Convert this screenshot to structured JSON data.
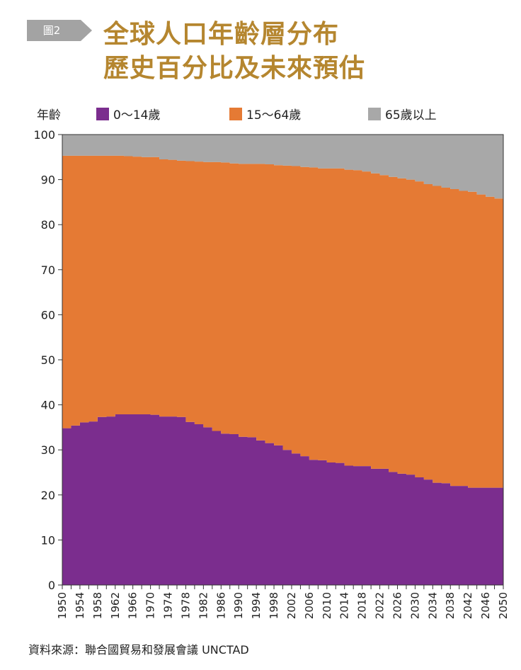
{
  "badge": "圖2",
  "title": [
    "全球人口年齡層分布",
    "歷史百分比及未來預估"
  ],
  "legend_label": "年齡",
  "source": "資料來源：聯合國貿易和發展會議 UNCTAD",
  "colors": {
    "g0_14": "#7b2d8e",
    "g15_64": "#e57a34",
    "g65": "#a8a8a8",
    "title": "#b5862f",
    "badge": "#a3a3a3"
  },
  "chart_data": {
    "type": "area",
    "stacked": true,
    "title": "全球人口年齡層分布 歷史百分比及未來預估",
    "xlabel": "",
    "ylabel": "年齡",
    "ylim": [
      0,
      100
    ],
    "yticks": [
      0,
      10,
      20,
      30,
      40,
      50,
      60,
      70,
      80,
      90,
      100
    ],
    "x": [
      1950,
      1952,
      1954,
      1956,
      1958,
      1960,
      1962,
      1964,
      1966,
      1968,
      1970,
      1972,
      1974,
      1976,
      1978,
      1980,
      1982,
      1984,
      1986,
      1988,
      1990,
      1992,
      1994,
      1996,
      1998,
      2000,
      2002,
      2004,
      2006,
      2008,
      2010,
      2012,
      2014,
      2016,
      2018,
      2020,
      2022,
      2024,
      2026,
      2028,
      2030,
      2032,
      2034,
      2036,
      2038,
      2040,
      2042,
      2044,
      2046,
      2048,
      2050
    ],
    "xtick_labels": [
      "1950",
      "1954",
      "1958",
      "1962",
      "1966",
      "1970",
      "1974",
      "1978",
      "1982",
      "1986",
      "1990",
      "1994",
      "1998",
      "2002",
      "2006",
      "2010",
      "2014",
      "2018",
      "2022",
      "2026",
      "2030",
      "2034",
      "2038",
      "2042",
      "2046",
      "2050"
    ],
    "series": [
      {
        "name": "0～14歲",
        "values": [
          34.8,
          35.4,
          36.1,
          36.3,
          37.3,
          37.4,
          37.9,
          37.9,
          37.9,
          37.9,
          37.8,
          37.4,
          37.4,
          37.3,
          36.2,
          35.7,
          35.0,
          34.2,
          33.6,
          33.5,
          32.9,
          32.8,
          32.1,
          31.5,
          31.0,
          30.0,
          29.2,
          28.6,
          27.8,
          27.7,
          27.2,
          27.1,
          26.5,
          26.4,
          26.4,
          25.8,
          25.8,
          25.1,
          24.7,
          24.5,
          23.9,
          23.4,
          22.7,
          22.6,
          22.0,
          22.0,
          21.6,
          21.6,
          21.6,
          21.6,
          20.8
        ]
      },
      {
        "name": "15～64歲",
        "values": [
          60.5,
          59.9,
          59.2,
          59.0,
          58.0,
          57.9,
          57.4,
          57.3,
          57.2,
          57.1,
          57.2,
          57.1,
          57.0,
          56.9,
          57.9,
          58.3,
          58.9,
          59.7,
          60.2,
          60.1,
          60.6,
          60.7,
          61.4,
          61.9,
          62.2,
          63.1,
          63.8,
          64.2,
          64.9,
          64.8,
          65.3,
          65.4,
          65.7,
          65.7,
          65.4,
          65.6,
          65.2,
          65.5,
          65.6,
          65.5,
          65.7,
          65.6,
          65.9,
          65.6,
          65.9,
          65.5,
          65.7,
          65.1,
          64.6,
          64.2,
          64.5
        ]
      },
      {
        "name": "65歲以上",
        "values": [
          4.7,
          4.7,
          4.7,
          4.7,
          4.7,
          4.7,
          4.7,
          4.8,
          4.9,
          5.0,
          5.0,
          5.5,
          5.6,
          5.8,
          5.9,
          6.0,
          6.1,
          6.1,
          6.2,
          6.4,
          6.5,
          6.5,
          6.5,
          6.6,
          6.8,
          6.9,
          7.0,
          7.2,
          7.3,
          7.5,
          7.5,
          7.5,
          7.8,
          7.9,
          8.2,
          8.6,
          9.0,
          9.4,
          9.7,
          10.0,
          10.4,
          11.0,
          11.4,
          11.8,
          12.1,
          12.5,
          12.7,
          13.3,
          13.8,
          14.2,
          14.7
        ]
      }
    ]
  }
}
